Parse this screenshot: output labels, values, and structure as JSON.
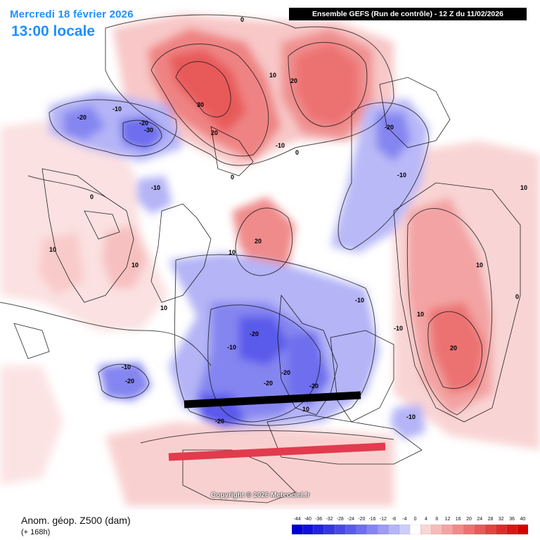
{
  "header": {
    "date": "Mercredi 18 février 2026",
    "time": "13:00 locale",
    "run": "Ensemble GEFS  (Run de contrôle)  -  12 Z du 11/02/2026"
  },
  "footer": {
    "variable": "Anom. géop. Z500 (dam)",
    "lead": "(+ 168h)",
    "copyright": "Copyright © 2026 Meteociel.fr"
  },
  "legend": {
    "ticks": [
      "-44",
      "-40",
      "-36",
      "-32",
      "-28",
      "-24",
      "-20",
      "-16",
      "-12",
      "-8",
      "-4",
      "0",
      "4",
      "8",
      "12",
      "16",
      "20",
      "24",
      "28",
      "32",
      "36",
      "40"
    ],
    "colors": [
      "#0000cc",
      "#1010dd",
      "#2222e0",
      "#3535e4",
      "#4848e8",
      "#5a5aeb",
      "#6e6eee",
      "#8585f1",
      "#9c9cf4",
      "#b4b4f7",
      "#cdcdfa",
      "#ffffff",
      "#fad6d6",
      "#f6bcbc",
      "#f3a3a3",
      "#f08b8b",
      "#ec7272",
      "#e85a5a",
      "#e44242",
      "#e02a2a",
      "#dc1414",
      "#d40000"
    ]
  },
  "contour_labels": [
    "30",
    "20",
    "20",
    "10",
    "0",
    "-10",
    "-20",
    "-30",
    "-10",
    "-20",
    "-10",
    "-20",
    "0",
    "-10",
    "10",
    "10",
    "10",
    "-10",
    "20",
    "0",
    "10",
    "-20",
    "-10",
    "-20",
    "-20",
    "-20",
    "-10",
    "-20",
    "-20",
    "-10",
    "-10",
    "10",
    "20",
    "10",
    "10",
    "0",
    "0",
    "10"
  ],
  "annotations": {
    "black_bar_color": "#000000",
    "red_bar_color": "#e23b4e"
  }
}
